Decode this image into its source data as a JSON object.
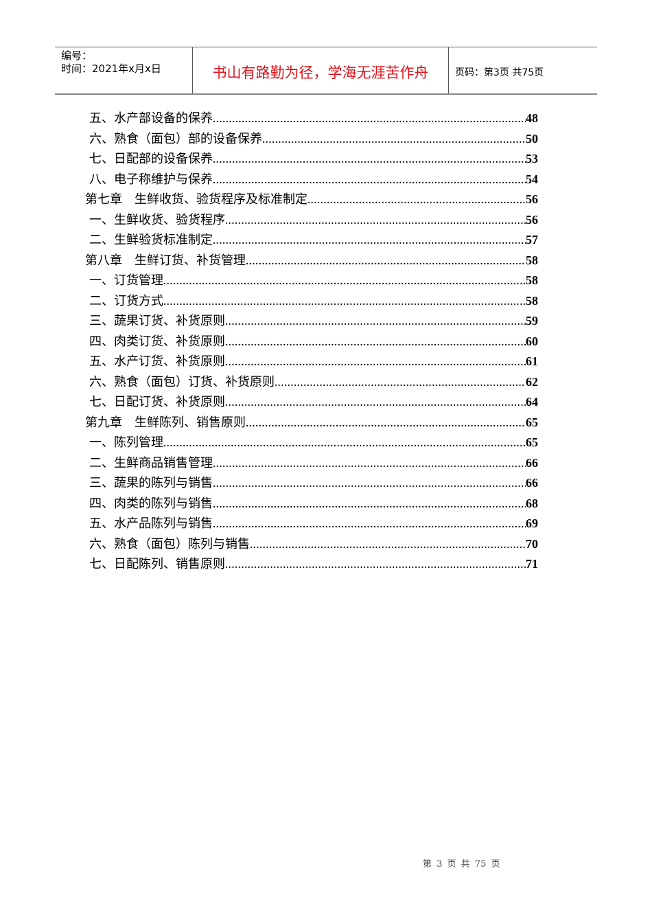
{
  "header": {
    "number_label": "编号：",
    "time_label": "时间：2021年x月x日",
    "motto": "书山有路勤为径，学海无涯苦作舟",
    "page_info": "页码：第3页  共75页"
  },
  "toc": [
    {
      "type": "sec",
      "title": "五、水产部设备的保养",
      "page": "48"
    },
    {
      "type": "sec",
      "title": "六、熟食（面包）部的设备保养",
      "page": "50"
    },
    {
      "type": "sec",
      "title": "七、日配部的设备保养",
      "page": "53"
    },
    {
      "type": "sec",
      "title": "八、电子称维护与保养",
      "page": "54"
    },
    {
      "type": "chap",
      "title": "第七章　生鲜收货、验货程序及标准制定",
      "page": "56"
    },
    {
      "type": "sec",
      "title": "一、生鲜收货、验货程序",
      "page": "56"
    },
    {
      "type": "sec",
      "title": "二、生鲜验货标准制定",
      "page": "57"
    },
    {
      "type": "chap",
      "title": "第八章　生鲜订货、补货管理",
      "page": "58"
    },
    {
      "type": "sec",
      "title": "一、订货管理",
      "page": "58"
    },
    {
      "type": "sec",
      "title": "二、订货方式",
      "page": "58"
    },
    {
      "type": "sec",
      "title": "三、蔬果订货、补货原则",
      "page": "59"
    },
    {
      "type": "sec",
      "title": "四、肉类订货、补货原则",
      "page": "60"
    },
    {
      "type": "sec",
      "title": "五、水产订货、补货原则",
      "page": "61"
    },
    {
      "type": "sec",
      "title": "六、熟食（面包）订货、补货原则",
      "page": "62"
    },
    {
      "type": "sec",
      "title": "七、日配订货、补货原则",
      "page": "64"
    },
    {
      "type": "chap",
      "title": "第九章　生鲜陈列、销售原则",
      "page": "65"
    },
    {
      "type": "sec",
      "title": "一、陈列管理",
      "page": "65"
    },
    {
      "type": "sec",
      "title": "二、生鲜商品销售管理",
      "page": "66"
    },
    {
      "type": "sec",
      "title": "三、蔬果的陈列与销售",
      "page": "66"
    },
    {
      "type": "sec",
      "title": "四、肉类的陈列与销售",
      "page": "68"
    },
    {
      "type": "sec",
      "title": "五、水产品陈列与销售",
      "page": "69"
    },
    {
      "type": "sec",
      "title": "六、熟食（面包）陈列与销售",
      "page": "70"
    },
    {
      "type": "sec",
      "title": "七、日配陈列、销售原则",
      "page": "71"
    }
  ],
  "footer": {
    "page_info": "第 3 页 共 75 页"
  },
  "colors": {
    "motto": "#e0141e"
  }
}
